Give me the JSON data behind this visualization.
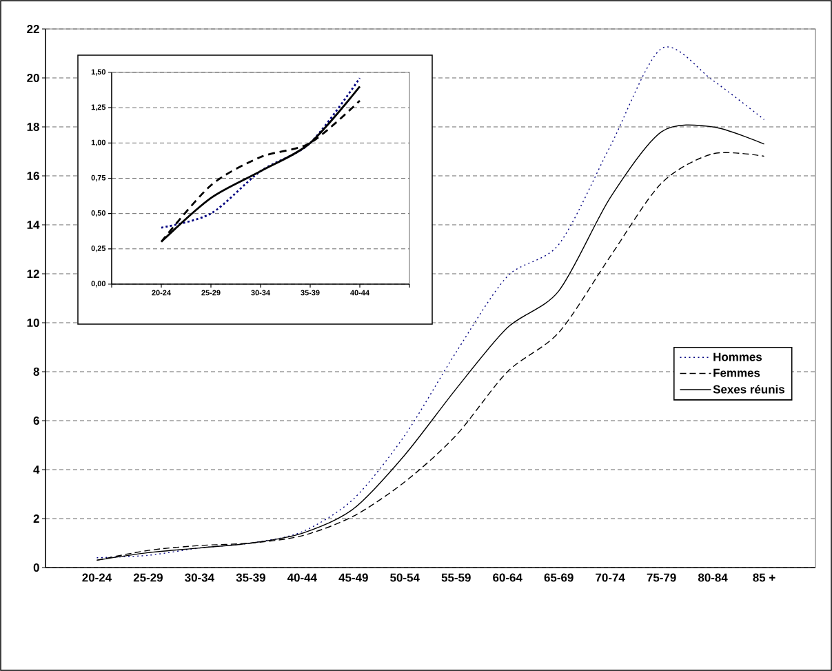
{
  "chart_data": [
    {
      "type": "line",
      "categories": [
        "20-24",
        "25-29",
        "30-34",
        "35-39",
        "40-44",
        "45-49",
        "50-54",
        "55-59",
        "60-64",
        "65-69",
        "70-74",
        "75-79",
        "80-84",
        "85 +"
      ],
      "series": [
        {
          "name": "Hommes",
          "color": "#000080",
          "line_style": "dotted",
          "values": [
            0.4,
            0.5,
            0.8,
            1.0,
            1.46,
            2.8,
            5.4,
            8.8,
            11.9,
            13.2,
            17.2,
            21.2,
            19.9,
            18.3
          ]
        },
        {
          "name": "Femmes",
          "color": "#000000",
          "line_style": "dashed",
          "values": [
            0.3,
            0.7,
            0.9,
            1.0,
            1.3,
            2.1,
            3.5,
            5.4,
            8.0,
            9.6,
            12.7,
            15.7,
            16.9,
            16.8
          ]
        },
        {
          "name": "Sexes réunis",
          "color": "#000000",
          "line_style": "solid",
          "values": [
            0.3,
            0.61,
            0.8,
            1.0,
            1.4,
            2.4,
            4.6,
            7.3,
            9.8,
            11.3,
            15.1,
            17.8,
            18.0,
            17.3
          ]
        }
      ],
      "ylim": [
        0,
        22
      ],
      "yticks": [
        0,
        2,
        4,
        6,
        8,
        10,
        12,
        14,
        16,
        18,
        20,
        22
      ],
      "grid": "y",
      "legend": "right"
    },
    {
      "type": "line",
      "categories": [
        "20-24",
        "25-29",
        "30-34",
        "35-39",
        "40-44"
      ],
      "series": [
        {
          "color": "#000080",
          "line_style": "dotted",
          "values": [
            0.4,
            0.5,
            0.8,
            1.0,
            1.46
          ]
        },
        {
          "color": "#000000",
          "line_style": "dashed",
          "values": [
            0.3,
            0.7,
            0.9,
            1.0,
            1.3
          ]
        },
        {
          "color": "#000000",
          "line_style": "solid",
          "values": [
            0.3,
            0.61,
            0.8,
            1.0,
            1.4
          ]
        }
      ],
      "ylim": [
        0,
        1.5
      ],
      "yticks": [
        {
          "value": 0,
          "label": "0,00"
        },
        {
          "value": 0.25,
          "label": "0,25"
        },
        {
          "value": 0.5,
          "label": "0,50"
        },
        {
          "value": 0.75,
          "label": "0,75"
        },
        {
          "value": 1,
          "label": "1,00"
        },
        {
          "value": 1.25,
          "label": "1,25"
        },
        {
          "value": 1.5,
          "label": "1,50"
        }
      ],
      "grid": "y"
    }
  ]
}
